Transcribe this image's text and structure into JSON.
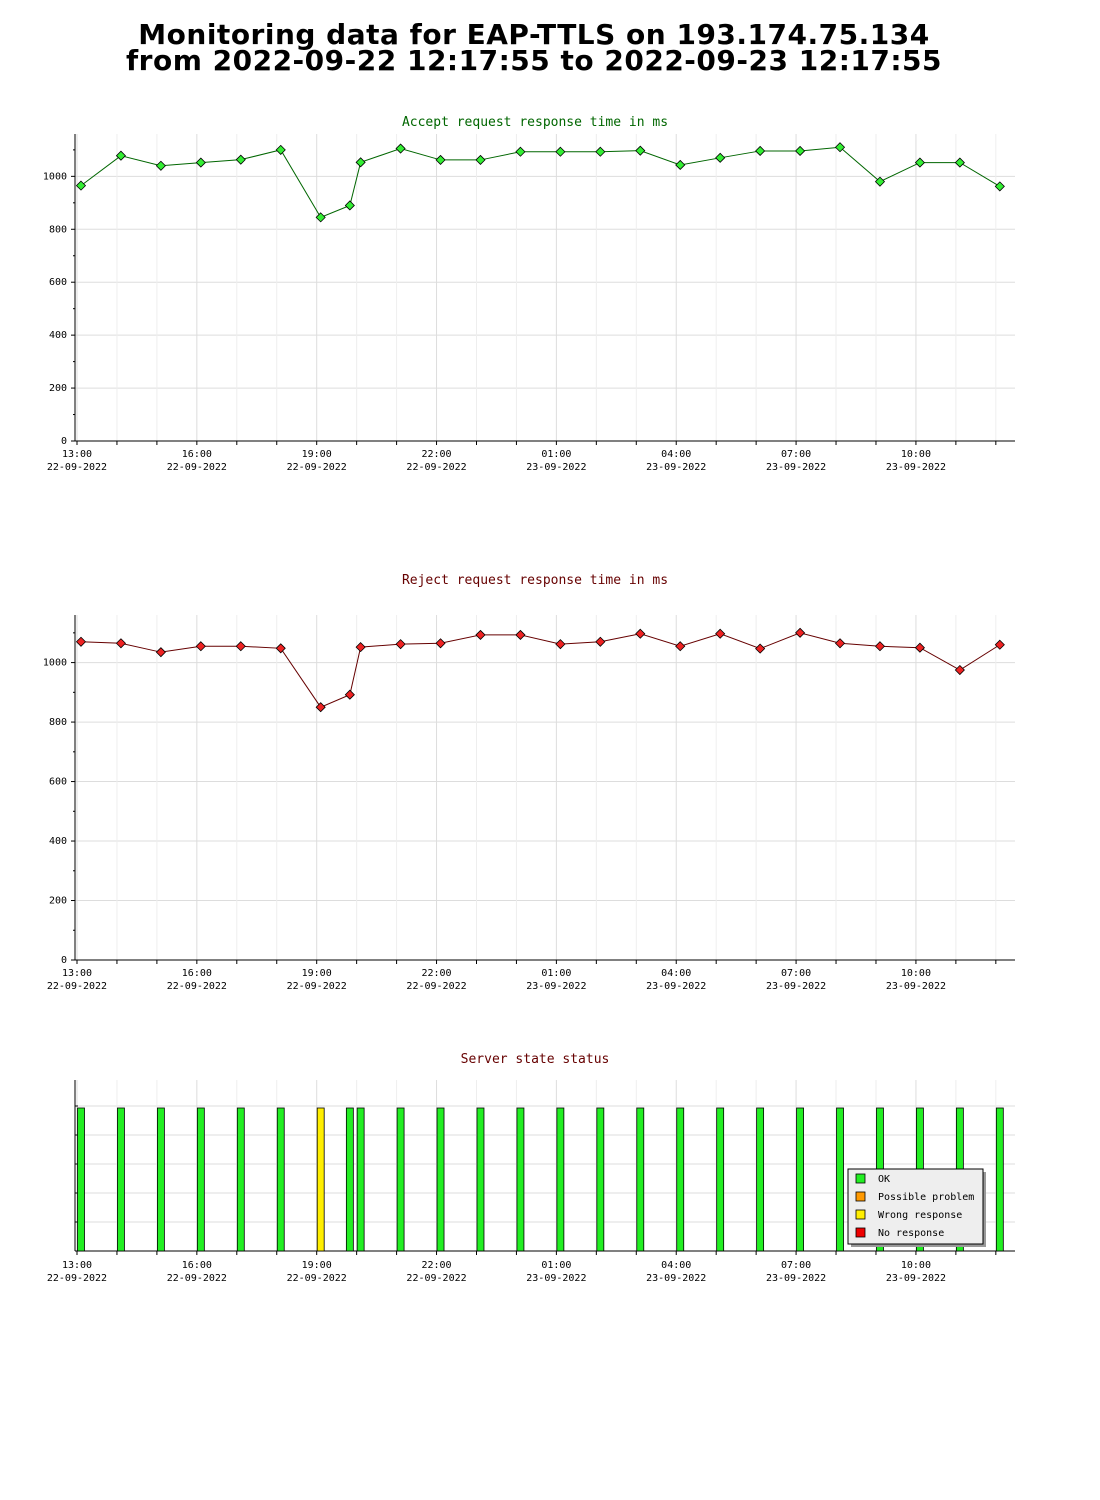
{
  "page": {
    "title_line1": "Monitoring data for EAP-TTLS on 193.174.75.134",
    "title_line2": "from 2022-09-22 12:17:55 to 2022-09-23 12:17:55"
  },
  "colors": {
    "accept_title": "#006600",
    "reject_title": "#660000",
    "status_title": "#660000",
    "accept_marker": "#33ee33",
    "reject_marker": "#ee2222",
    "ok": "#22ee22",
    "possible_problem": "#ff9900",
    "wrong_response": "#ffee00",
    "no_response": "#ee0000",
    "grid": "#dddddd"
  },
  "x_axis": {
    "ticks": [
      {
        "time": "13:00",
        "date": "22-09-2022",
        "hour": 13
      },
      {
        "time": "16:00",
        "date": "22-09-2022",
        "hour": 16
      },
      {
        "time": "19:00",
        "date": "22-09-2022",
        "hour": 19
      },
      {
        "time": "22:00",
        "date": "22-09-2022",
        "hour": 22
      },
      {
        "time": "01:00",
        "date": "23-09-2022",
        "hour": 25
      },
      {
        "time": "04:00",
        "date": "23-09-2022",
        "hour": 28
      },
      {
        "time": "07:00",
        "date": "23-09-2022",
        "hour": 31
      },
      {
        "time": "10:00",
        "date": "23-09-2022",
        "hour": 34
      }
    ],
    "range_hours": [
      12.95,
      36.48
    ]
  },
  "chart_data": [
    {
      "type": "line",
      "title": "Accept request response time in ms",
      "ylim": [
        0,
        1160
      ],
      "yticks": [
        0,
        200,
        400,
        600,
        800,
        1000
      ],
      "grid": true,
      "x": [
        13.1,
        14.1,
        15.1,
        16.1,
        17.1,
        18.1,
        19.1,
        19.83,
        20.1,
        21.1,
        22.1,
        23.1,
        24.1,
        25.1,
        26.1,
        27.1,
        28.1,
        29.1,
        30.1,
        31.1,
        32.1,
        33.1,
        34.1,
        35.1,
        36.1
      ],
      "series": [
        {
          "values": [
            965,
            1078,
            1040,
            1052,
            1063,
            1100,
            845,
            890,
            1053,
            1105,
            1062,
            1062,
            1093,
            1093,
            1093,
            1097,
            1043,
            1070,
            1096,
            1096,
            1110,
            980,
            1052,
            1052,
            962
          ]
        }
      ]
    },
    {
      "type": "line",
      "title": "Reject request response time in ms",
      "ylim": [
        0,
        1160
      ],
      "yticks": [
        0,
        200,
        400,
        600,
        800,
        1000
      ],
      "grid": true,
      "x": [
        13.1,
        14.1,
        15.1,
        16.1,
        17.1,
        18.1,
        19.1,
        19.83,
        20.1,
        21.1,
        22.1,
        23.1,
        24.1,
        25.1,
        26.1,
        27.1,
        28.1,
        29.1,
        30.1,
        31.1,
        32.1,
        33.1,
        34.1,
        35.1,
        36.1
      ],
      "series": [
        {
          "values": [
            1070,
            1065,
            1035,
            1055,
            1055,
            1048,
            850,
            892,
            1052,
            1062,
            1065,
            1093,
            1093,
            1062,
            1070,
            1097,
            1055,
            1097,
            1047,
            1100,
            1065,
            1055,
            1050,
            975,
            1060
          ]
        }
      ]
    },
    {
      "type": "bar",
      "title": "Server state status",
      "x": [
        13.1,
        14.1,
        15.1,
        16.1,
        17.1,
        18.1,
        19.1,
        19.83,
        20.1,
        21.1,
        22.1,
        23.1,
        24.1,
        25.1,
        26.1,
        27.1,
        28.1,
        29.1,
        30.1,
        31.1,
        32.1,
        33.1,
        34.1,
        35.1,
        36.1
      ],
      "states": [
        "OK",
        "OK",
        "OK",
        "OK",
        "OK",
        "OK",
        "Wrong response",
        "OK",
        "OK",
        "OK",
        "OK",
        "OK",
        "OK",
        "OK",
        "OK",
        "OK",
        "OK",
        "OK",
        "OK",
        "OK",
        "OK",
        "OK",
        "OK",
        "OK",
        "OK"
      ],
      "legend": {
        "placement": "bottom-right",
        "entries": [
          "OK",
          "Possible problem",
          "Wrong response",
          "No response"
        ]
      }
    }
  ]
}
